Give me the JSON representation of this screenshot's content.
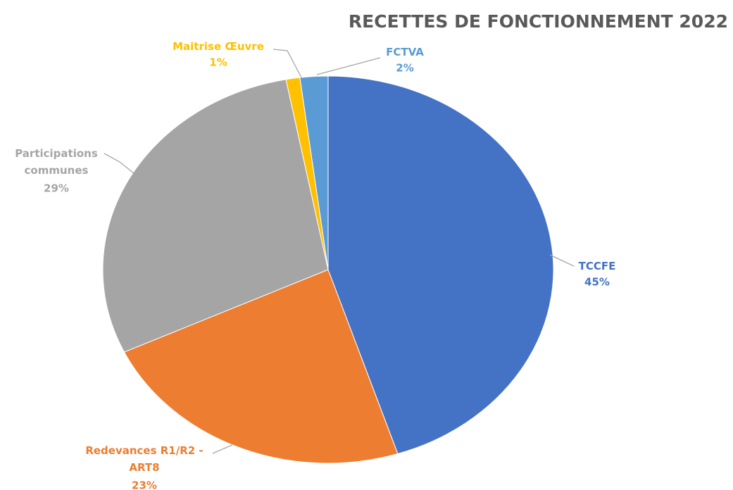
{
  "chart_data": {
    "type": "pie",
    "title": "RECETTES DE FONCTIONNEMENT 2022",
    "categories": [
      "TCCFE",
      "Redevances R1/R2 - ART8",
      "Participations communes",
      "Maitrise Œuvre",
      "FCTVA"
    ],
    "values": [
      45,
      23,
      29,
      1,
      2
    ],
    "value_labels": [
      "45%",
      "23%",
      "29%",
      "1%",
      "2%"
    ],
    "colors": [
      "#4472c4",
      "#ed7d31",
      "#a5a5a5",
      "#ffc000",
      "#5b9bd5"
    ]
  }
}
